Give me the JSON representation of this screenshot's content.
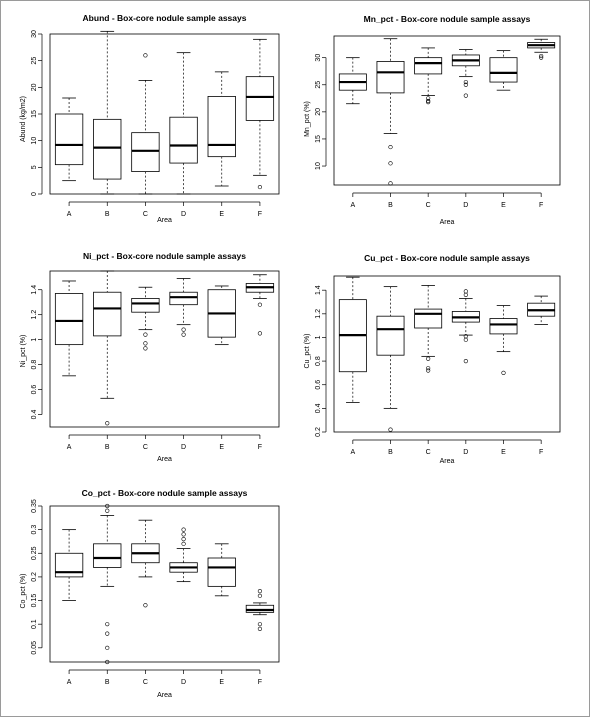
{
  "chart_data": [
    {
      "type": "box",
      "title": "Abund - Box-core nodule sample assays",
      "xlabel": "Area",
      "ylabel": "Abund (kg/m2)",
      "ylim": [
        0,
        30
      ],
      "yticks": [
        0,
        5,
        10,
        15,
        20,
        25,
        30
      ],
      "categories": [
        "A",
        "B",
        "C",
        "D",
        "E",
        "F"
      ],
      "boxes": [
        {
          "min": 2.5,
          "q1": 5.5,
          "median": 9.2,
          "q3": 15.0,
          "max": 18.0,
          "outliers": []
        },
        {
          "min": 0.0,
          "q1": 2.8,
          "median": 8.7,
          "q3": 14.0,
          "max": 30.5,
          "outliers": []
        },
        {
          "min": 0.0,
          "q1": 4.2,
          "median": 8.1,
          "q3": 11.5,
          "max": 21.3,
          "outliers": [
            26.0
          ]
        },
        {
          "min": 0.0,
          "q1": 5.8,
          "median": 9.1,
          "q3": 14.4,
          "max": 26.5,
          "outliers": []
        },
        {
          "min": 1.5,
          "q1": 7.0,
          "median": 9.2,
          "q3": 18.3,
          "max": 22.9,
          "outliers": []
        },
        {
          "min": 3.5,
          "q1": 13.8,
          "median": 18.2,
          "q3": 22.0,
          "max": 29.0,
          "outliers": [
            1.3
          ]
        }
      ]
    },
    {
      "type": "box",
      "title": "Mn_pct - Box-core nodule sample assays",
      "xlabel": "Area",
      "ylabel": "Mn_pct (%)",
      "ylim": [
        6.5,
        34
      ],
      "yticks": [
        10,
        15,
        20,
        25,
        30
      ],
      "categories": [
        "A",
        "B",
        "C",
        "D",
        "E",
        "F"
      ],
      "boxes": [
        {
          "min": 21.5,
          "q1": 24.0,
          "median": 25.5,
          "q3": 27.0,
          "max": 30.0,
          "outliers": []
        },
        {
          "min": 16.0,
          "q1": 23.5,
          "median": 27.3,
          "q3": 29.3,
          "max": 33.5,
          "outliers": [
            13.5,
            10.5,
            6.8
          ]
        },
        {
          "min": 23.0,
          "q1": 27.0,
          "median": 29.0,
          "q3": 30.0,
          "max": 31.8,
          "outliers": [
            22.5,
            22.0,
            21.8
          ]
        },
        {
          "min": 26.5,
          "q1": 28.5,
          "median": 29.5,
          "q3": 30.5,
          "max": 31.5,
          "outliers": [
            25.5,
            25.0,
            23.0
          ]
        },
        {
          "min": 24.0,
          "q1": 25.5,
          "median": 27.2,
          "q3": 30.0,
          "max": 31.3,
          "outliers": []
        },
        {
          "min": 31.0,
          "q1": 31.8,
          "median": 32.3,
          "q3": 32.8,
          "max": 33.4,
          "outliers": [
            30.3,
            30.0
          ]
        }
      ]
    },
    {
      "type": "box",
      "title": "Ni_pct - Box-core nodule sample assays",
      "xlabel": "Area",
      "ylabel": "Ni_pct (%)",
      "ylim": [
        0.3,
        1.55
      ],
      "yticks": [
        0.4,
        0.6,
        0.8,
        1.0,
        1.2,
        1.4
      ],
      "categories": [
        "A",
        "B",
        "C",
        "D",
        "E",
        "F"
      ],
      "boxes": [
        {
          "min": 0.71,
          "q1": 0.96,
          "median": 1.15,
          "q3": 1.37,
          "max": 1.47,
          "outliers": []
        },
        {
          "min": 0.53,
          "q1": 1.03,
          "median": 1.25,
          "q3": 1.38,
          "max": 1.55,
          "outliers": [
            0.33
          ]
        },
        {
          "min": 1.08,
          "q1": 1.22,
          "median": 1.29,
          "q3": 1.33,
          "max": 1.42,
          "outliers": [
            1.04,
            0.97,
            0.93
          ]
        },
        {
          "min": 1.12,
          "q1": 1.28,
          "median": 1.34,
          "q3": 1.38,
          "max": 1.49,
          "outliers": [
            1.08,
            1.04
          ]
        },
        {
          "min": 0.96,
          "q1": 1.02,
          "median": 1.21,
          "q3": 1.4,
          "max": 1.43,
          "outliers": []
        },
        {
          "min": 1.33,
          "q1": 1.38,
          "median": 1.42,
          "q3": 1.45,
          "max": 1.52,
          "outliers": [
            1.28,
            1.05
          ]
        }
      ]
    },
    {
      "type": "box",
      "title": "Cu_pct - Box-core nodule sample assays",
      "xlabel": "Area",
      "ylabel": "Cu_pct (%)",
      "ylim": [
        0.2,
        1.52
      ],
      "yticks": [
        0.2,
        0.4,
        0.6,
        0.8,
        1.0,
        1.2,
        1.4
      ],
      "categories": [
        "A",
        "B",
        "C",
        "D",
        "E",
        "F"
      ],
      "boxes": [
        {
          "min": 0.45,
          "q1": 0.71,
          "median": 1.02,
          "q3": 1.32,
          "max": 1.51,
          "outliers": []
        },
        {
          "min": 0.4,
          "q1": 0.85,
          "median": 1.07,
          "q3": 1.18,
          "max": 1.43,
          "outliers": [
            0.22
          ]
        },
        {
          "min": 0.84,
          "q1": 1.08,
          "median": 1.2,
          "q3": 1.24,
          "max": 1.44,
          "outliers": [
            0.82,
            0.74,
            0.72
          ]
        },
        {
          "min": 1.02,
          "q1": 1.13,
          "median": 1.17,
          "q3": 1.22,
          "max": 1.33,
          "outliers": [
            1.39,
            1.36,
            1.01,
            0.98,
            0.8
          ]
        },
        {
          "min": 0.88,
          "q1": 1.03,
          "median": 1.11,
          "q3": 1.16,
          "max": 1.27,
          "outliers": [
            0.7
          ]
        },
        {
          "min": 1.11,
          "q1": 1.18,
          "median": 1.23,
          "q3": 1.29,
          "max": 1.35,
          "outliers": []
        }
      ]
    },
    {
      "type": "box",
      "title": "Co_pct - Box-core nodule sample assays",
      "xlabel": "Area",
      "ylabel": "Co_pct (%)",
      "ylim": [
        0.02,
        0.35
      ],
      "yticks": [
        0.05,
        0.1,
        0.15,
        0.2,
        0.25,
        0.3,
        0.35
      ],
      "categories": [
        "A",
        "B",
        "C",
        "D",
        "E",
        "F"
      ],
      "boxes": [
        {
          "min": 0.15,
          "q1": 0.2,
          "median": 0.21,
          "q3": 0.25,
          "max": 0.3,
          "outliers": []
        },
        {
          "min": 0.18,
          "q1": 0.22,
          "median": 0.24,
          "q3": 0.27,
          "max": 0.33,
          "outliers": [
            0.35,
            0.34,
            0.1,
            0.08,
            0.05,
            0.02
          ]
        },
        {
          "min": 0.2,
          "q1": 0.23,
          "median": 0.25,
          "q3": 0.27,
          "max": 0.32,
          "outliers": [
            0.14
          ]
        },
        {
          "min": 0.19,
          "q1": 0.21,
          "median": 0.22,
          "q3": 0.23,
          "max": 0.26,
          "outliers": [
            0.3,
            0.29,
            0.28,
            0.27
          ]
        },
        {
          "min": 0.16,
          "q1": 0.18,
          "median": 0.22,
          "q3": 0.24,
          "max": 0.27,
          "outliers": []
        },
        {
          "min": 0.12,
          "q1": 0.125,
          "median": 0.13,
          "q3": 0.14,
          "max": 0.145,
          "outliers": [
            0.17,
            0.16,
            0.1,
            0.09
          ]
        }
      ]
    }
  ]
}
